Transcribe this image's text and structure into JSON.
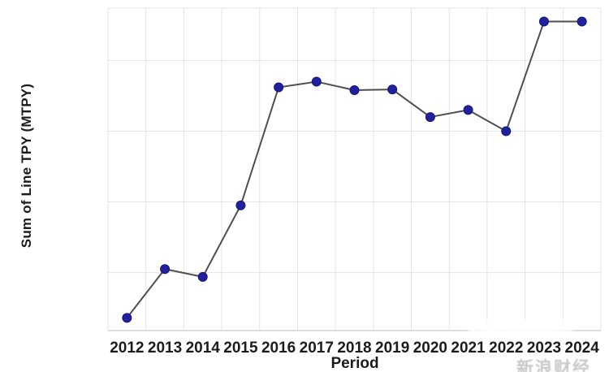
{
  "page": {
    "background": "#ffffff"
  },
  "chart_data": {
    "type": "line",
    "title": "",
    "xlabel": "Period",
    "ylabel": "Sum of Line TPY (MTPY)",
    "categories": [
      "2012",
      "2013",
      "2014",
      "2015",
      "2016",
      "2017",
      "2018",
      "2019",
      "2020",
      "2021",
      "2022",
      "2023",
      "2024"
    ],
    "series": [
      {
        "name": "Sum of Line TPY (MTPY)",
        "values": [
          0.18,
          0.87,
          0.76,
          1.77,
          3.44,
          3.52,
          3.4,
          3.41,
          3.02,
          3.12,
          2.82,
          4.37,
          4.37
        ]
      }
    ],
    "ylim": [
      0,
      4.56
    ],
    "ytick_values": [
      0.82,
      1.82,
      2.82,
      3.82
    ],
    "ytick_labels_visible": false,
    "grid": "both",
    "legend": "none",
    "colors": {
      "point": "#21219e",
      "point_edge": "#16167c",
      "line": "#4f4f4f",
      "grid": "#e4e4e4",
      "axis": "#cccccc",
      "tick_text": "#1c1c1c"
    }
  },
  "watermark": {
    "band_text": "新浪财经",
    "corner_text": "新浪财经"
  }
}
